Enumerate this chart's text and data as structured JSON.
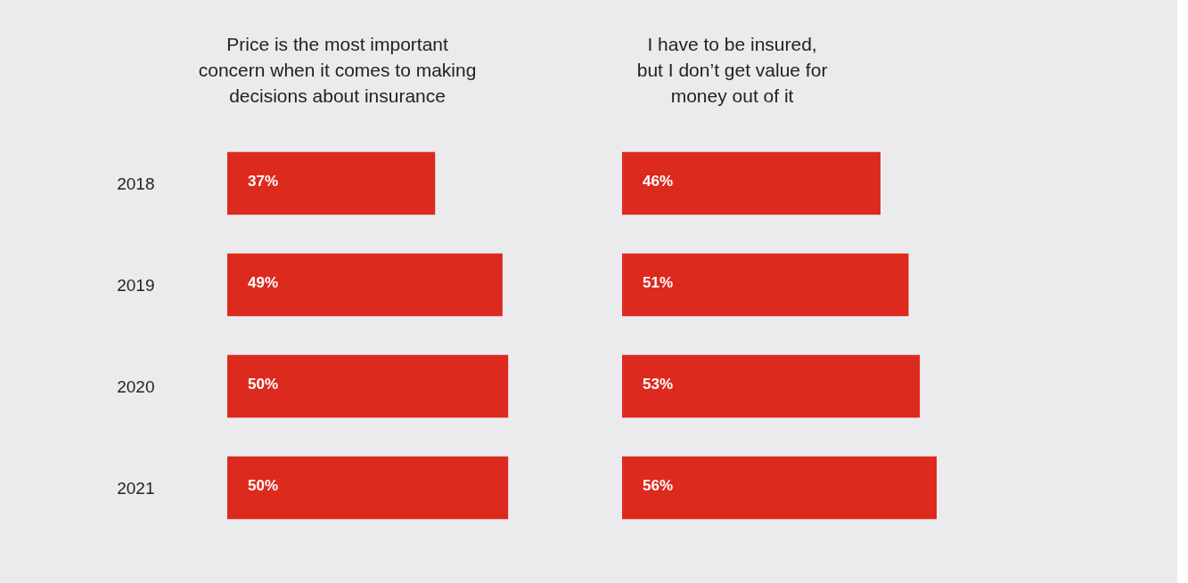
{
  "chart_data": [
    {
      "type": "bar",
      "orientation": "horizontal",
      "title": "Price is the most important\nconcern when it comes to making\ndecisions about insurance",
      "categories": [
        "2018",
        "2019",
        "2020",
        "2021"
      ],
      "values": [
        37,
        49,
        50,
        50
      ],
      "color": "#dc2a1f",
      "value_labels": [
        "37%",
        "49%",
        "50%",
        "50%"
      ]
    },
    {
      "type": "bar",
      "orientation": "horizontal",
      "title": "I have to be insured,\nbut I don’t get value for\nmoney out of it",
      "categories": [
        "2018",
        "2019",
        "2020",
        "2021"
      ],
      "values": [
        46,
        51,
        53,
        56
      ],
      "color": "#dc2a1f",
      "value_labels": [
        "46%",
        "51%",
        "53%",
        "56%"
      ],
      "tick_labels": false
    }
  ]
}
